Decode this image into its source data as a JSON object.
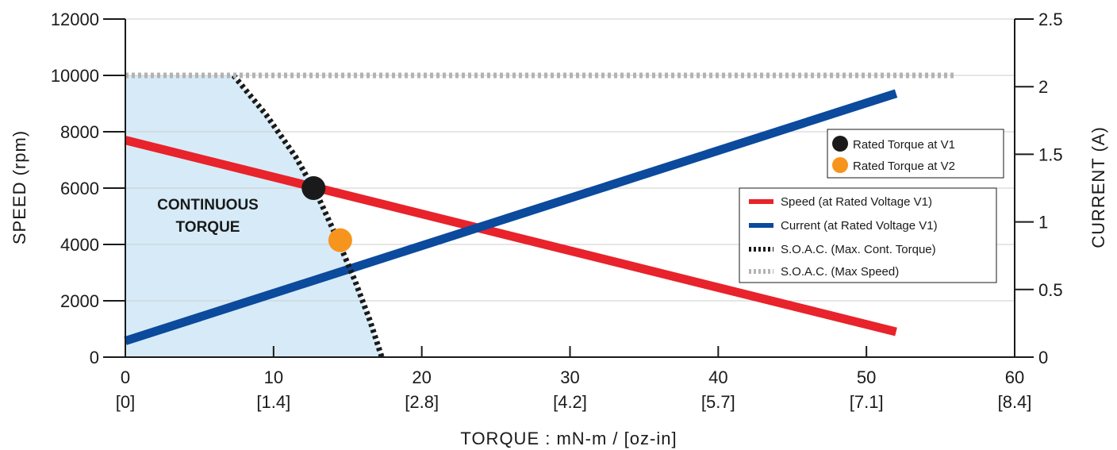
{
  "chart_data": {
    "type": "line",
    "xlabel": "TORQUE : mN-m / [oz-in]",
    "ylabel": "SPEED (rpm)",
    "y2label": "CURRENT (A)",
    "xlim": [
      0,
      60
    ],
    "ylim": [
      0,
      12000
    ],
    "y2lim": [
      0,
      2.5
    ],
    "x_ticks": [
      0,
      10,
      20,
      30,
      40,
      50,
      60
    ],
    "x_tick_labels": [
      "0",
      "10",
      "20",
      "30",
      "40",
      "50",
      "60"
    ],
    "x_tick_sublabels": [
      "[0]",
      "[1.4]",
      "[2.8]",
      "[4.2]",
      "[5.7]",
      "[7.1]",
      "[8.4]"
    ],
    "y_ticks": [
      0,
      2000,
      4000,
      6000,
      8000,
      10000,
      12000
    ],
    "y_tick_labels": [
      "0",
      "2000",
      "4000",
      "6000",
      "8000",
      "10000",
      "12000"
    ],
    "y2_ticks": [
      0,
      0.5,
      1,
      1.5,
      2,
      2.5
    ],
    "y2_tick_labels": [
      "0",
      "0.5",
      "1",
      "1.5",
      "2",
      "2.5"
    ],
    "grid": "horizontal",
    "region_label": [
      "CONTINUOUS",
      "TORQUE"
    ],
    "series": [
      {
        "name": "Speed (at Rated  Voltage V1)",
        "axis": "left",
        "style": "solid",
        "color": "#e8232b",
        "x": [
          0,
          52
        ],
        "y": [
          7700,
          900
        ]
      },
      {
        "name": "Current (at Rated Voltage V1)",
        "axis": "right",
        "style": "solid",
        "color": "#0b4a9c",
        "x": [
          0,
          52
        ],
        "y": [
          0.12,
          1.95
        ]
      },
      {
        "name": "S.O.A.C. (Max. Cont. Torque)",
        "axis": "left",
        "style": "dashed",
        "color": "#1a1a1a",
        "x": [
          7.3,
          9.5,
          11.5,
          13.0,
          14.3,
          15.5,
          16.5,
          17.3
        ],
        "y": [
          10000,
          8600,
          7100,
          5700,
          4200,
          2700,
          1300,
          0
        ]
      },
      {
        "name": "S.O.A.C. (Max Speed)",
        "axis": "left",
        "style": "dashed",
        "color": "#b3b3b3",
        "x": [
          0,
          56
        ],
        "y": [
          10000,
          10000
        ]
      }
    ],
    "points": [
      {
        "name": "Rated Torque at V1",
        "x": 12.7,
        "y": 6000,
        "color": "#1a1a1a"
      },
      {
        "name": "Rated Torque at V2",
        "x": 14.5,
        "y": 4150,
        "color": "#f7941d"
      }
    ],
    "colors": {
      "region_fill": "#d6ebf7",
      "grid": "#cccccc",
      "axis": "#1a1a1a"
    }
  }
}
